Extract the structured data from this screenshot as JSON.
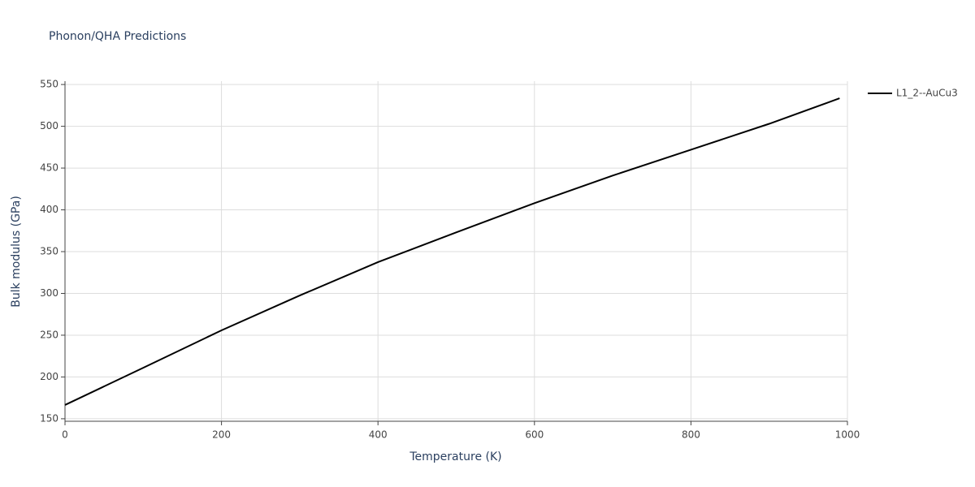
{
  "chart_data": {
    "type": "line",
    "title": "Phonon/QHA Predictions",
    "x_label": "Temperature (K)",
    "y_label": "Bulk modulus (GPa)",
    "x": [
      0,
      100,
      200,
      300,
      400,
      500,
      600,
      700,
      800,
      900,
      990
    ],
    "series": [
      {
        "name": "L1_2--AuCu3",
        "color": "#000000",
        "values": [
          166.5,
          211,
          255.8,
          297.5,
          337.4,
          373,
          408,
          441,
          472,
          503,
          533.5
        ]
      }
    ],
    "xlim": [
      0,
      1000
    ],
    "xticks": [
      0,
      200,
      400,
      600,
      800,
      1000
    ],
    "ylim": [
      147,
      554
    ],
    "yticks": [
      150,
      200,
      250,
      300,
      350,
      400,
      450,
      500,
      550
    ],
    "grid": true,
    "legend": "right"
  }
}
